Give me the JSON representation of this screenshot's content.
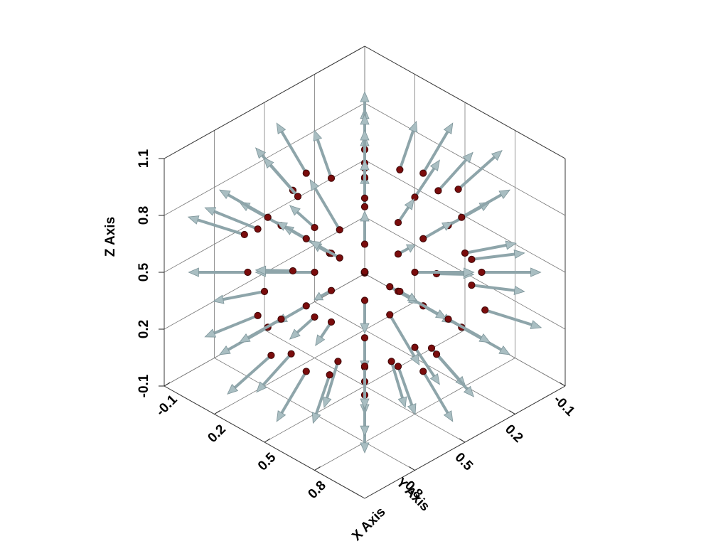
{
  "chart_data": {
    "type": "3d-vector-field",
    "xlabel": "X Axis",
    "ylabel": "Y Axis",
    "zlabel": "Z Axis",
    "xlim": [
      -0.1,
      1.1
    ],
    "ylim": [
      -0.1,
      1.1
    ],
    "zlim": [
      -0.1,
      1.1
    ],
    "x_ticks": [
      "-0.1",
      "0.2",
      "0.5",
      "0.8"
    ],
    "y_ticks": [
      "-0.1",
      "0.2",
      "0.5",
      "0.8"
    ],
    "z_ticks": [
      "-0.1",
      "0.2",
      "0.5",
      "0.8",
      "1.1"
    ],
    "grid": true,
    "point_color": "#7a0c0c",
    "arrow_color": "#a9bec2",
    "center": [
      0.5,
      0.5,
      0.5
    ],
    "sphere_radius": 0.5,
    "glyph_scale": 0.25,
    "points": [
      [
        0.0,
        0.5,
        0.5
      ],
      [
        1.0,
        0.5,
        0.5
      ],
      [
        0.5,
        0.0,
        0.5
      ],
      [
        0.5,
        1.0,
        0.5
      ],
      [
        0.5,
        0.5,
        0.0
      ],
      [
        0.5,
        0.5,
        1.0
      ],
      [
        0.15,
        0.15,
        0.5
      ],
      [
        0.85,
        0.15,
        0.5
      ],
      [
        0.15,
        0.85,
        0.5
      ],
      [
        0.85,
        0.85,
        0.5
      ],
      [
        0.15,
        0.5,
        0.15
      ],
      [
        0.85,
        0.5,
        0.15
      ],
      [
        0.15,
        0.5,
        0.85
      ],
      [
        0.85,
        0.5,
        0.85
      ],
      [
        0.5,
        0.15,
        0.15
      ],
      [
        0.5,
        0.85,
        0.15
      ],
      [
        0.5,
        0.15,
        0.85
      ],
      [
        0.5,
        0.85,
        0.85
      ],
      [
        0.21,
        0.21,
        0.21
      ],
      [
        0.79,
        0.21,
        0.21
      ],
      [
        0.21,
        0.79,
        0.21
      ],
      [
        0.79,
        0.79,
        0.21
      ],
      [
        0.21,
        0.21,
        0.79
      ],
      [
        0.79,
        0.21,
        0.79
      ],
      [
        0.21,
        0.79,
        0.79
      ],
      [
        0.79,
        0.79,
        0.79
      ],
      [
        0.03,
        0.33,
        0.42
      ],
      [
        0.03,
        0.67,
        0.58
      ],
      [
        0.97,
        0.33,
        0.58
      ],
      [
        0.97,
        0.67,
        0.42
      ],
      [
        0.33,
        0.03,
        0.58
      ],
      [
        0.67,
        0.03,
        0.42
      ],
      [
        0.33,
        0.97,
        0.42
      ],
      [
        0.67,
        0.97,
        0.58
      ],
      [
        0.42,
        0.58,
        0.03
      ],
      [
        0.58,
        0.42,
        0.03
      ],
      [
        0.42,
        0.42,
        0.97
      ],
      [
        0.58,
        0.58,
        0.97
      ],
      [
        0.07,
        0.5,
        0.72
      ],
      [
        0.93,
        0.5,
        0.28
      ],
      [
        0.5,
        0.07,
        0.28
      ],
      [
        0.5,
        0.93,
        0.72
      ],
      [
        0.28,
        0.72,
        0.07
      ],
      [
        0.72,
        0.28,
        0.93
      ],
      [
        0.07,
        0.28,
        0.28
      ],
      [
        0.93,
        0.72,
        0.72
      ],
      [
        0.28,
        0.07,
        0.72
      ],
      [
        0.72,
        0.93,
        0.28
      ],
      [
        0.28,
        0.28,
        0.93
      ],
      [
        0.72,
        0.72,
        0.07
      ],
      [
        0.1,
        0.7,
        0.3
      ],
      [
        0.9,
        0.3,
        0.7
      ],
      [
        0.3,
        0.1,
        0.3
      ],
      [
        0.7,
        0.9,
        0.7
      ],
      [
        0.3,
        0.7,
        0.9
      ],
      [
        0.7,
        0.3,
        0.1
      ],
      [
        0.1,
        0.3,
        0.7
      ],
      [
        0.9,
        0.7,
        0.3
      ],
      [
        0.35,
        0.35,
        0.5
      ],
      [
        0.65,
        0.35,
        0.5
      ],
      [
        0.35,
        0.65,
        0.5
      ],
      [
        0.65,
        0.65,
        0.5
      ],
      [
        0.5,
        0.35,
        0.35
      ],
      [
        0.5,
        0.65,
        0.65
      ],
      [
        0.35,
        0.5,
        0.65
      ],
      [
        0.65,
        0.5,
        0.35
      ],
      [
        0.4,
        0.4,
        0.4
      ],
      [
        0.6,
        0.6,
        0.6
      ],
      [
        0.4,
        0.6,
        0.6
      ],
      [
        0.6,
        0.4,
        0.4
      ],
      [
        0.22,
        0.42,
        0.06
      ],
      [
        0.78,
        0.58,
        0.94
      ],
      [
        0.06,
        0.78,
        0.62
      ],
      [
        0.94,
        0.22,
        0.38
      ],
      [
        0.62,
        0.06,
        0.78
      ],
      [
        0.38,
        0.94,
        0.22
      ],
      [
        0.12,
        0.12,
        0.62
      ],
      [
        0.88,
        0.88,
        0.38
      ]
    ]
  }
}
